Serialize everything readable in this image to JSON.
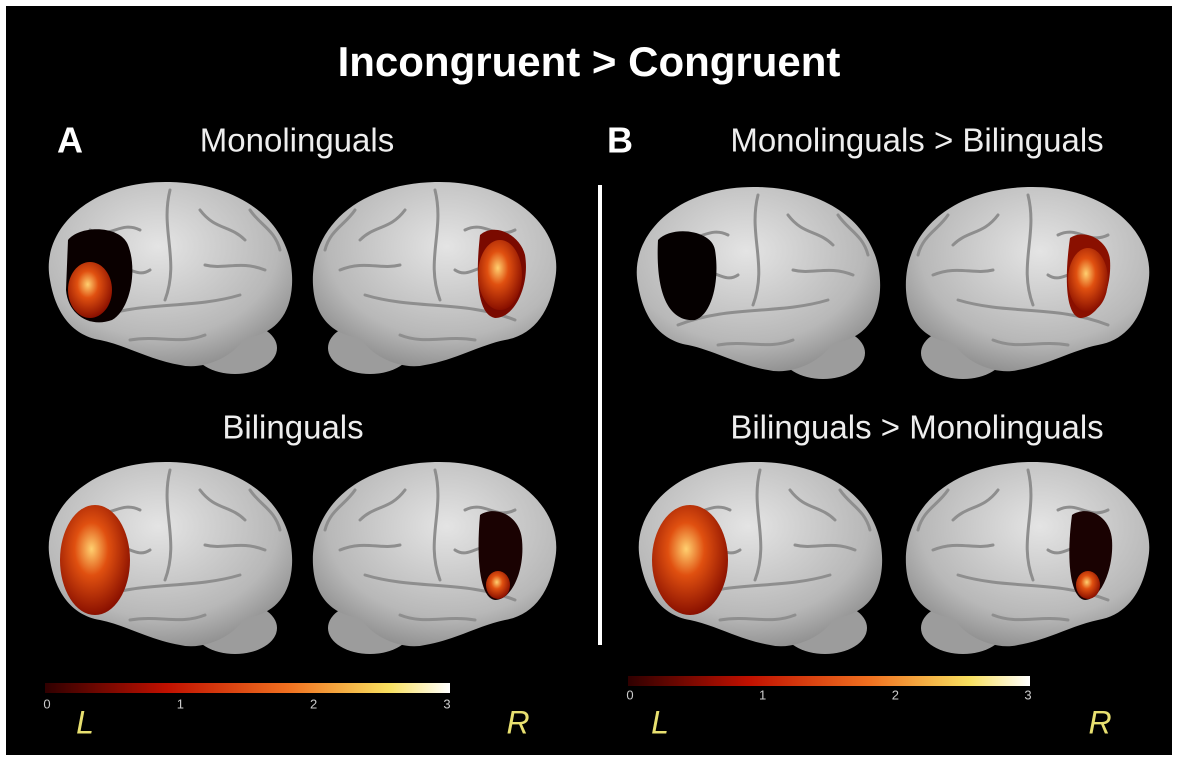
{
  "title": "Incongruent > Congruent",
  "panels": [
    {
      "label": "A",
      "titles": [
        "Monolinguals",
        "Bilinguals"
      ],
      "colorbar": {
        "ticks": [
          0,
          1,
          2,
          3
        ]
      },
      "left": "L",
      "right": "R"
    },
    {
      "label": "B",
      "titles": [
        "Monolinguals >  Bilinguals",
        "Bilinguals > Monolinguals"
      ],
      "colorbar": {
        "ticks": [
          0,
          1,
          2,
          3
        ]
      },
      "left": "L",
      "right": "R"
    }
  ]
}
